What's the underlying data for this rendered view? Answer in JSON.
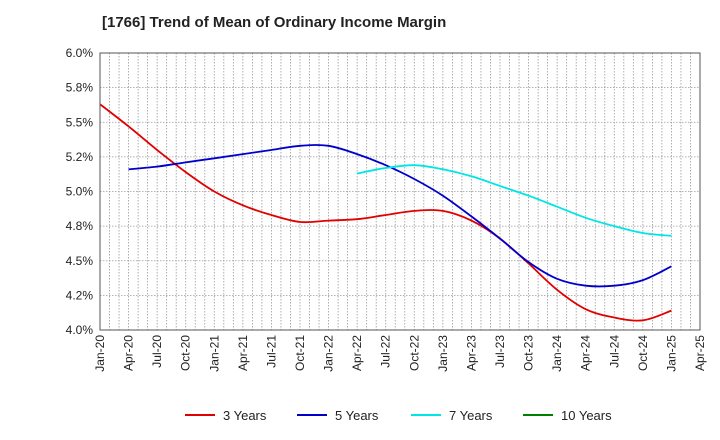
{
  "chart_data": {
    "type": "line",
    "title": "[1766]  Trend of Mean of Ordinary Income Margin",
    "xlabel": "",
    "ylabel": "",
    "ylim": [
      4.0,
      6.0
    ],
    "y_ticks": [
      "4.0%",
      "4.2%",
      "4.5%",
      "4.8%",
      "5.0%",
      "5.2%",
      "5.5%",
      "5.8%",
      "6.0%"
    ],
    "x_ticks": [
      "Jan-20",
      "Apr-20",
      "Jul-20",
      "Oct-20",
      "Jan-21",
      "Apr-21",
      "Jul-21",
      "Oct-21",
      "Jan-22",
      "Apr-22",
      "Jul-22",
      "Oct-22",
      "Jan-23",
      "Apr-23",
      "Jul-23",
      "Oct-23",
      "Jan-24",
      "Apr-24",
      "Jul-24",
      "Oct-24",
      "Jan-25",
      "Apr-25"
    ],
    "grid": true,
    "legend_position": "bottom",
    "series": [
      {
        "name": "3 Years",
        "color": "#e00000",
        "x": [
          "Jan-20",
          "Apr-20",
          "Jul-20",
          "Oct-20",
          "Jan-21",
          "Apr-21",
          "Jul-21",
          "Oct-21",
          "Jan-22",
          "Apr-22",
          "Jul-22",
          "Oct-22",
          "Jan-23",
          "Apr-23",
          "Jul-23",
          "Oct-23",
          "Jan-24",
          "Apr-24",
          "Jul-24",
          "Oct-24",
          "Jan-25"
        ],
        "values": [
          5.63,
          5.47,
          5.3,
          5.14,
          5.0,
          4.9,
          4.83,
          4.78,
          4.79,
          4.8,
          4.83,
          4.86,
          4.86,
          4.79,
          4.66,
          4.48,
          4.29,
          4.15,
          4.09,
          4.07,
          4.14
        ]
      },
      {
        "name": "5 Years",
        "color": "#0000cc",
        "x": [
          "Apr-20",
          "Jul-20",
          "Oct-20",
          "Jan-21",
          "Apr-21",
          "Jul-21",
          "Oct-21",
          "Jan-22",
          "Apr-22",
          "Jul-22",
          "Oct-22",
          "Jan-23",
          "Apr-23",
          "Jul-23",
          "Oct-23",
          "Jan-24",
          "Apr-24",
          "Jul-24",
          "Oct-24",
          "Jan-25"
        ],
        "values": [
          5.16,
          5.18,
          5.21,
          5.24,
          5.27,
          5.3,
          5.33,
          5.33,
          5.27,
          5.19,
          5.09,
          4.97,
          4.82,
          4.66,
          4.49,
          4.37,
          4.32,
          4.32,
          4.36,
          4.46
        ]
      },
      {
        "name": "7 Years",
        "color": "#00e5e5",
        "x": [
          "Apr-22",
          "Jul-22",
          "Oct-22",
          "Jan-23",
          "Apr-23",
          "Jul-23",
          "Oct-23",
          "Jan-24",
          "Apr-24",
          "Jul-24",
          "Oct-24",
          "Jan-25"
        ],
        "values": [
          5.13,
          5.17,
          5.19,
          5.16,
          5.11,
          5.04,
          4.97,
          4.89,
          4.81,
          4.75,
          4.7,
          4.68
        ]
      },
      {
        "name": "10 Years",
        "color": "#008000",
        "x": [],
        "values": []
      }
    ]
  }
}
